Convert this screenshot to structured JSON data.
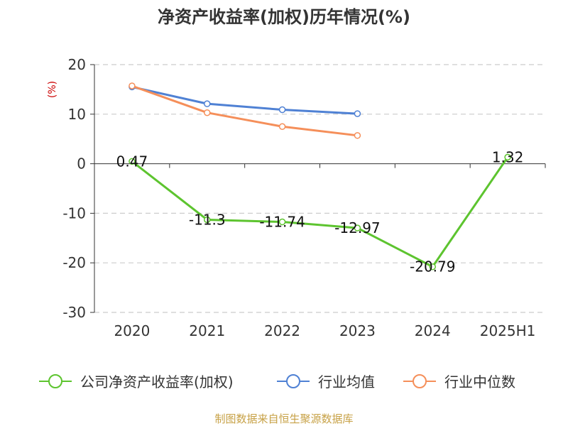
{
  "title": "净资产收益率(加权)历年情况(%)",
  "source": "制图数据来自恒生聚源数据库",
  "colors": {
    "company": "#5dc42f",
    "industry_avg": "#4f81d4",
    "industry_median": "#f58f5a",
    "grid": "#cccccc",
    "axis": "#333333",
    "unit": "#cc0000",
    "source": "#c7a146"
  },
  "chart_data": {
    "type": "line",
    "categories": [
      "2020",
      "2021",
      "2022",
      "2023",
      "2024",
      "2025H1"
    ],
    "ylabel": "(%)",
    "ylim": [
      -30,
      20
    ],
    "yticks": [
      20,
      10,
      0,
      -10,
      -20,
      -30
    ],
    "grid": true,
    "legend_position": "bottom",
    "series": [
      {
        "name": "公司净资产收益率(加权)",
        "color_key": "company",
        "values": [
          0.47,
          -11.3,
          -11.74,
          -12.97,
          -20.79,
          1.32
        ],
        "labels": [
          "0.47",
          "-11.3",
          "-11.74",
          "-12.97",
          "-20.79",
          "1.32"
        ]
      },
      {
        "name": "行业均值",
        "color_key": "industry_avg",
        "values": [
          15.5,
          12.1,
          10.9,
          10.1,
          null,
          null
        ]
      },
      {
        "name": "行业中位数",
        "color_key": "industry_median",
        "values": [
          15.7,
          10.3,
          7.5,
          5.7,
          null,
          null
        ]
      }
    ]
  }
}
